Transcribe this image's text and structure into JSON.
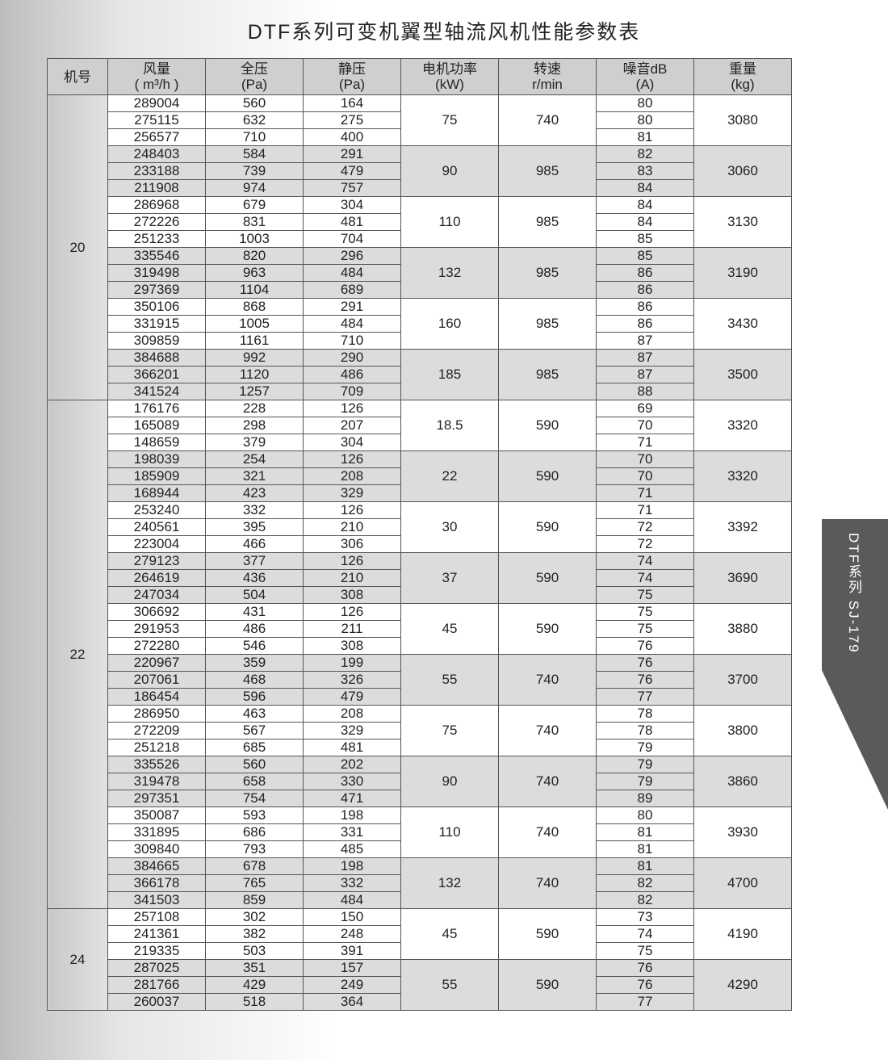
{
  "title": "DTF系列可变机翼型轴流风机性能参数表",
  "side_tab": "DTF系列  SJ-179",
  "headers": [
    {
      "l1": "机号",
      "l2": ""
    },
    {
      "l1": "风量",
      "l2": "( m³/h )"
    },
    {
      "l1": "全压",
      "l2": "(Pa)"
    },
    {
      "l1": "静压",
      "l2": "(Pa)"
    },
    {
      "l1": "电机功率",
      "l2": "(kW)"
    },
    {
      "l1": "转速",
      "l2": "r/min"
    },
    {
      "l1": "噪音dB",
      "l2": "(A)"
    },
    {
      "l1": "重量",
      "l2": "(kg)"
    }
  ],
  "groups": [
    {
      "model": "20",
      "blocks": [
        {
          "power": "75",
          "speed": "740",
          "weight": "3080",
          "rows": [
            [
              "289004",
              "560",
              "164",
              "80"
            ],
            [
              "275115",
              "632",
              "275",
              "80"
            ],
            [
              "256577",
              "710",
              "400",
              "81"
            ]
          ]
        },
        {
          "power": "90",
          "speed": "985",
          "weight": "3060",
          "rows": [
            [
              "248403",
              "584",
              "291",
              "82"
            ],
            [
              "233188",
              "739",
              "479",
              "83"
            ],
            [
              "211908",
              "974",
              "757",
              "84"
            ]
          ]
        },
        {
          "power": "110",
          "speed": "985",
          "weight": "3130",
          "rows": [
            [
              "286968",
              "679",
              "304",
              "84"
            ],
            [
              "272226",
              "831",
              "481",
              "84"
            ],
            [
              "251233",
              "1003",
              "704",
              "85"
            ]
          ]
        },
        {
          "power": "132",
          "speed": "985",
          "weight": "3190",
          "rows": [
            [
              "335546",
              "820",
              "296",
              "85"
            ],
            [
              "319498",
              "963",
              "484",
              "86"
            ],
            [
              "297369",
              "1104",
              "689",
              "86"
            ]
          ]
        },
        {
          "power": "160",
          "speed": "985",
          "weight": "3430",
          "rows": [
            [
              "350106",
              "868",
              "291",
              "86"
            ],
            [
              "331915",
              "1005",
              "484",
              "86"
            ],
            [
              "309859",
              "1161",
              "710",
              "87"
            ]
          ]
        },
        {
          "power": "185",
          "speed": "985",
          "weight": "3500",
          "rows": [
            [
              "384688",
              "992",
              "290",
              "87"
            ],
            [
              "366201",
              "1120",
              "486",
              "87"
            ],
            [
              "341524",
              "1257",
              "709",
              "88"
            ]
          ]
        }
      ]
    },
    {
      "model": "22",
      "blocks": [
        {
          "power": "18.5",
          "speed": "590",
          "weight": "3320",
          "rows": [
            [
              "176176",
              "228",
              "126",
              "69"
            ],
            [
              "165089",
              "298",
              "207",
              "70"
            ],
            [
              "148659",
              "379",
              "304",
              "71"
            ]
          ]
        },
        {
          "power": "22",
          "speed": "590",
          "weight": "3320",
          "rows": [
            [
              "198039",
              "254",
              "126",
              "70"
            ],
            [
              "185909",
              "321",
              "208",
              "70"
            ],
            [
              "168944",
              "423",
              "329",
              "71"
            ]
          ]
        },
        {
          "power": "30",
          "speed": "590",
          "weight": "3392",
          "rows": [
            [
              "253240",
              "332",
              "126",
              "71"
            ],
            [
              "240561",
              "395",
              "210",
              "72"
            ],
            [
              "223004",
              "466",
              "306",
              "72"
            ]
          ]
        },
        {
          "power": "37",
          "speed": "590",
          "weight": "3690",
          "rows": [
            [
              "279123",
              "377",
              "126",
              "74"
            ],
            [
              "264619",
              "436",
              "210",
              "74"
            ],
            [
              "247034",
              "504",
              "308",
              "75"
            ]
          ]
        },
        {
          "power": "45",
          "speed": "590",
          "weight": "3880",
          "rows": [
            [
              "306692",
              "431",
              "126",
              "75"
            ],
            [
              "291953",
              "486",
              "211",
              "75"
            ],
            [
              "272280",
              "546",
              "308",
              "76"
            ]
          ]
        },
        {
          "power": "55",
          "speed": "740",
          "weight": "3700",
          "rows": [
            [
              "220967",
              "359",
              "199",
              "76"
            ],
            [
              "207061",
              "468",
              "326",
              "76"
            ],
            [
              "186454",
              "596",
              "479",
              "77"
            ]
          ]
        },
        {
          "power": "75",
          "speed": "740",
          "weight": "3800",
          "rows": [
            [
              "286950",
              "463",
              "208",
              "78"
            ],
            [
              "272209",
              "567",
              "329",
              "78"
            ],
            [
              "251218",
              "685",
              "481",
              "79"
            ]
          ]
        },
        {
          "power": "90",
          "speed": "740",
          "weight": "3860",
          "rows": [
            [
              "335526",
              "560",
              "202",
              "79"
            ],
            [
              "319478",
              "658",
              "330",
              "79"
            ],
            [
              "297351",
              "754",
              "471",
              "89"
            ]
          ]
        },
        {
          "power": "110",
          "speed": "740",
          "weight": "3930",
          "rows": [
            [
              "350087",
              "593",
              "198",
              "80"
            ],
            [
              "331895",
              "686",
              "331",
              "81"
            ],
            [
              "309840",
              "793",
              "485",
              "81"
            ]
          ]
        },
        {
          "power": "132",
          "speed": "740",
          "weight": "4700",
          "rows": [
            [
              "384665",
              "678",
              "198",
              "81"
            ],
            [
              "366178",
              "765",
              "332",
              "82"
            ],
            [
              "341503",
              "859",
              "484",
              "82"
            ]
          ]
        }
      ]
    },
    {
      "model": "24",
      "blocks": [
        {
          "power": "45",
          "speed": "590",
          "weight": "4190",
          "rows": [
            [
              "257108",
              "302",
              "150",
              "73"
            ],
            [
              "241361",
              "382",
              "248",
              "74"
            ],
            [
              "219335",
              "503",
              "391",
              "75"
            ]
          ]
        },
        {
          "power": "55",
          "speed": "590",
          "weight": "4290",
          "rows": [
            [
              "287025",
              "351",
              "157",
              "76"
            ],
            [
              "281766",
              "429",
              "249",
              "76"
            ],
            [
              "260037",
              "518",
              "364",
              "77"
            ]
          ]
        }
      ]
    }
  ]
}
